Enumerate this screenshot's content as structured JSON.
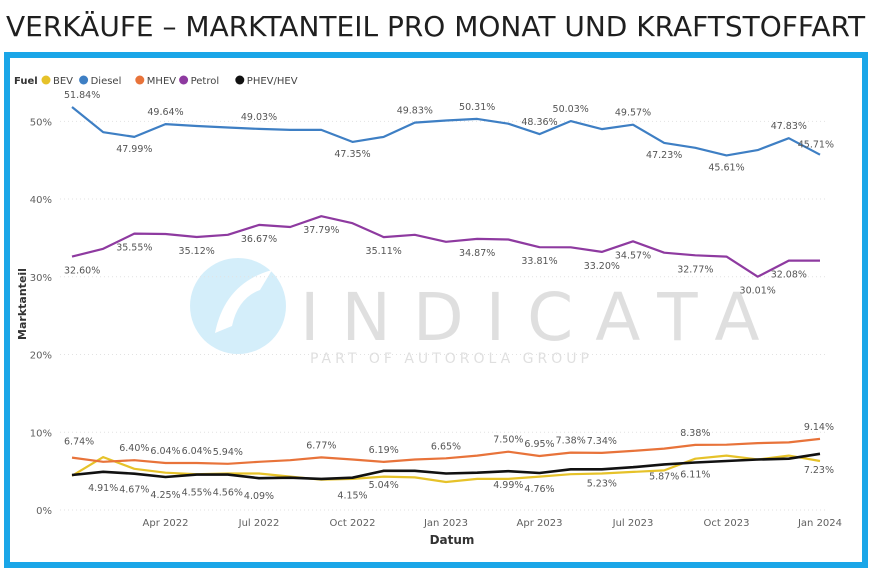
{
  "page": {
    "title": "VERKÄUFE – MARKTANTEIL PRO MONAT UND KRAFTSTOFFART"
  },
  "watermark": {
    "brand": "INDICATA",
    "tagline": "PART OF AUTOROLA GROUP"
  },
  "colors": {
    "frame": "#1aa6e8",
    "BEV": "#e6c229",
    "Diesel": "#3e7fc4",
    "MHEV": "#e8733a",
    "Petrol": "#8e3aa0",
    "PHEV/HEV": "#111111"
  },
  "chart_data": {
    "type": "line",
    "legend_title": "Fuel",
    "legend_position": "top-left",
    "xlabel": "Datum",
    "ylabel": "Marktanteil",
    "ylim": [
      0,
      0.53
    ],
    "yticks": [
      "0%",
      "10%",
      "20%",
      "30%",
      "40%",
      "50%"
    ],
    "xticks": [
      "Apr 2022",
      "Jul 2022",
      "Oct 2022",
      "Jan 2023",
      "Apr 2023",
      "Jul 2023",
      "Oct 2023",
      "Jan 2024"
    ],
    "x": [
      "2022-01",
      "2022-02",
      "2022-03",
      "2022-04",
      "2022-05",
      "2022-06",
      "2022-07",
      "2022-08",
      "2022-09",
      "2022-10",
      "2022-11",
      "2022-12",
      "2023-01",
      "2023-02",
      "2023-03",
      "2023-04",
      "2023-05",
      "2023-06",
      "2023-07",
      "2023-08",
      "2023-09",
      "2023-10",
      "2023-11",
      "2023-12",
      "2024-01"
    ],
    "series": [
      {
        "name": "BEV",
        "values": [
          4.4,
          6.8,
          5.3,
          4.8,
          4.6,
          4.7,
          4.7,
          4.3,
          3.9,
          4.0,
          4.3,
          4.2,
          3.6,
          4.0,
          4.0,
          4.3,
          4.6,
          4.7,
          4.9,
          5.1,
          6.6,
          7.0,
          6.5,
          7.0,
          6.3
        ],
        "labels": {}
      },
      {
        "name": "Diesel",
        "values": [
          51.84,
          48.6,
          47.99,
          49.64,
          49.4,
          49.2,
          49.03,
          48.9,
          48.9,
          47.35,
          48.0,
          49.83,
          50.1,
          50.31,
          49.7,
          48.36,
          50.03,
          49.0,
          49.57,
          47.23,
          46.6,
          45.61,
          46.3,
          47.83,
          45.71
        ],
        "labels": {
          "0": "51.84%",
          "2": "47.99%",
          "3": "49.64%",
          "6": "49.03%",
          "9": "47.35%",
          "11": "49.83%",
          "13": "50.31%",
          "15": "48.36%",
          "16": "50.03%",
          "18": "49.57%",
          "19": "47.23%",
          "21": "45.61%",
          "23": "47.83%",
          "24": "45.71%"
        }
      },
      {
        "name": "MHEV",
        "values": [
          6.74,
          6.2,
          6.4,
          6.04,
          6.04,
          5.94,
          6.2,
          6.4,
          6.77,
          6.5,
          6.19,
          6.5,
          6.65,
          7.0,
          7.5,
          6.95,
          7.38,
          7.34,
          7.6,
          7.9,
          8.38,
          8.4,
          8.6,
          8.7,
          9.14
        ],
        "labels": {
          "0": "6.74%",
          "2": "6.40%",
          "3": "6.04%",
          "4": "6.04%",
          "5": "5.94%",
          "8": "6.77%",
          "10": "6.19%",
          "12": "6.65%",
          "14": "7.50%",
          "15": "6.95%",
          "16": "7.38%",
          "17": "7.34%",
          "20": "8.38%",
          "24": "9.14%"
        }
      },
      {
        "name": "Petrol",
        "values": [
          32.6,
          33.6,
          35.55,
          35.5,
          35.12,
          35.4,
          36.67,
          36.4,
          37.79,
          36.9,
          35.11,
          35.4,
          34.5,
          34.87,
          34.8,
          33.81,
          33.8,
          33.2,
          34.57,
          33.1,
          32.77,
          32.6,
          30.01,
          32.08,
          32.08
        ],
        "labels": {
          "0": "32.60%",
          "2": "35.55%",
          "4": "35.12%",
          "6": "36.67%",
          "8": "37.79%",
          "10": "35.11%",
          "13": "34.87%",
          "15": "33.81%",
          "17": "33.20%",
          "18": "34.57%",
          "20": "32.77%",
          "22": "30.01%",
          "23": "32.08%"
        }
      },
      {
        "name": "PHEV/HEV",
        "values": [
          4.5,
          4.91,
          4.67,
          4.25,
          4.55,
          4.56,
          4.09,
          4.15,
          4.0,
          4.15,
          5.04,
          5.04,
          4.7,
          4.8,
          4.99,
          4.76,
          5.23,
          5.23,
          5.5,
          5.87,
          6.11,
          6.3,
          6.5,
          6.6,
          7.23
        ],
        "labels": {
          "1": "4.91%",
          "2": "4.67%",
          "3": "4.25%",
          "4": "4.55%",
          "5": "4.56%",
          "6": "4.09%",
          "9": "4.15%",
          "10": "5.04%",
          "14": "4.99%",
          "15": "4.76%",
          "17": "5.23%",
          "19": "5.87%",
          "20": "6.11%",
          "24": "7.23%"
        }
      }
    ]
  }
}
